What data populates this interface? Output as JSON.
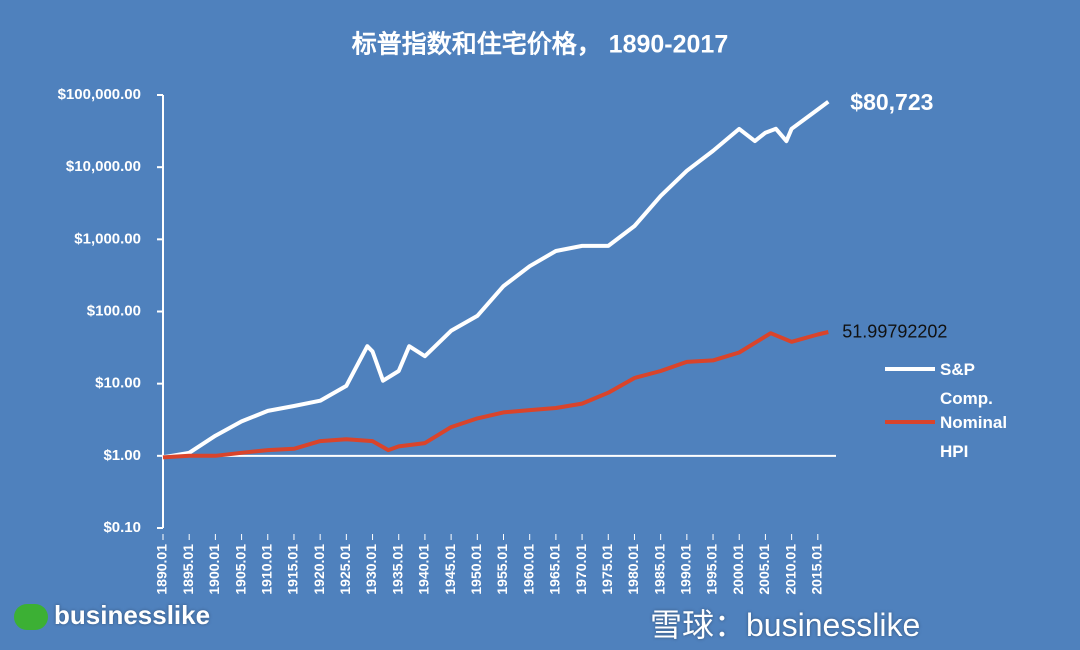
{
  "chart_data": {
    "type": "line",
    "title": "标普指数和住宅价格， 1890-2017",
    "log_scale": true,
    "ylim": [
      0.1,
      100000
    ],
    "yticks": [
      {
        "value": 0.1,
        "label": "$0.10"
      },
      {
        "value": 1,
        "label": "$1.00"
      },
      {
        "value": 10,
        "label": "$10.00"
      },
      {
        "value": 100,
        "label": "$100.00"
      },
      {
        "value": 1000,
        "label": "$1,000.00"
      },
      {
        "value": 10000,
        "label": "$10,000.00"
      },
      {
        "value": 100000,
        "label": "$100,000.00"
      }
    ],
    "x_axis_crosses": 1,
    "xlim": [
      1890,
      2020
    ],
    "xticks": [
      {
        "value": 1890,
        "label": "1890.01"
      },
      {
        "value": 1895,
        "label": "1895.01"
      },
      {
        "value": 1900,
        "label": "1900.01"
      },
      {
        "value": 1905,
        "label": "1905.01"
      },
      {
        "value": 1910,
        "label": "1910.01"
      },
      {
        "value": 1915,
        "label": "1915.01"
      },
      {
        "value": 1920,
        "label": "1920.01"
      },
      {
        "value": 1925,
        "label": "1925.01"
      },
      {
        "value": 1930,
        "label": "1930.01"
      },
      {
        "value": 1935,
        "label": "1935.01"
      },
      {
        "value": 1940,
        "label": "1940.01"
      },
      {
        "value": 1945,
        "label": "1945.01"
      },
      {
        "value": 1950,
        "label": "1950.01"
      },
      {
        "value": 1955,
        "label": "1955.01"
      },
      {
        "value": 1960,
        "label": "1960.01"
      },
      {
        "value": 1965,
        "label": "1965.01"
      },
      {
        "value": 1970,
        "label": "1970.01"
      },
      {
        "value": 1975,
        "label": "1975.01"
      },
      {
        "value": 1980,
        "label": "1980.01"
      },
      {
        "value": 1985,
        "label": "1985.01"
      },
      {
        "value": 1990,
        "label": "1990.01"
      },
      {
        "value": 1995,
        "label": "1995.01"
      },
      {
        "value": 2000,
        "label": "2000.01"
      },
      {
        "value": 2005,
        "label": "2005.01"
      },
      {
        "value": 2010,
        "label": "2010.01"
      },
      {
        "value": 2015,
        "label": "2015.01"
      }
    ],
    "series": [
      {
        "name": "S&P Comp.",
        "color": "#ffffff",
        "x": [
          1890,
          1895,
          1900,
          1905,
          1910,
          1915,
          1920,
          1925,
          1929,
          1930,
          1932,
          1935,
          1937,
          1940,
          1945,
          1950,
          1955,
          1960,
          1965,
          1970,
          1975,
          1980,
          1985,
          1990,
          1995,
          2000,
          2003,
          2005,
          2007,
          2009,
          2010,
          2015,
          2017
        ],
        "values": [
          0.95,
          1.1,
          1.9,
          3,
          4.2,
          4.9,
          5.8,
          9.3,
          33,
          28,
          11,
          15,
          33,
          24,
          54,
          87,
          225,
          425,
          690,
          810,
          810,
          1530,
          4000,
          8900,
          16800,
          33900,
          23000,
          30000,
          34000,
          23000,
          34000,
          63000,
          80723
        ],
        "value_labels": [
          null,
          null,
          null,
          null,
          null,
          null,
          null,
          null,
          null,
          null,
          null,
          null,
          null,
          null,
          null,
          null,
          null,
          null,
          null,
          null,
          null,
          null,
          null,
          null,
          null,
          null,
          null,
          null,
          null,
          null,
          null,
          null,
          "$80,723"
        ]
      },
      {
        "name": "Nominal HPI",
        "color": "#d9442b",
        "x": [
          1890,
          1895,
          1900,
          1905,
          1910,
          1915,
          1920,
          1925,
          1930,
          1933,
          1935,
          1940,
          1945,
          1950,
          1955,
          1960,
          1965,
          1970,
          1975,
          1980,
          1985,
          1990,
          1995,
          2000,
          2006,
          2010,
          2015,
          2017
        ],
        "values": [
          0.95,
          1.0,
          1.0,
          1.1,
          1.2,
          1.25,
          1.6,
          1.7,
          1.6,
          1.2,
          1.35,
          1.5,
          2.5,
          3.3,
          4.0,
          4.3,
          4.6,
          5.3,
          7.5,
          12,
          15,
          20,
          21,
          27,
          50,
          38,
          48,
          51.99792202
        ],
        "show_last_value": true
      }
    ],
    "watermarks": [
      "businesslike",
      "雪球：businesslike"
    ]
  }
}
